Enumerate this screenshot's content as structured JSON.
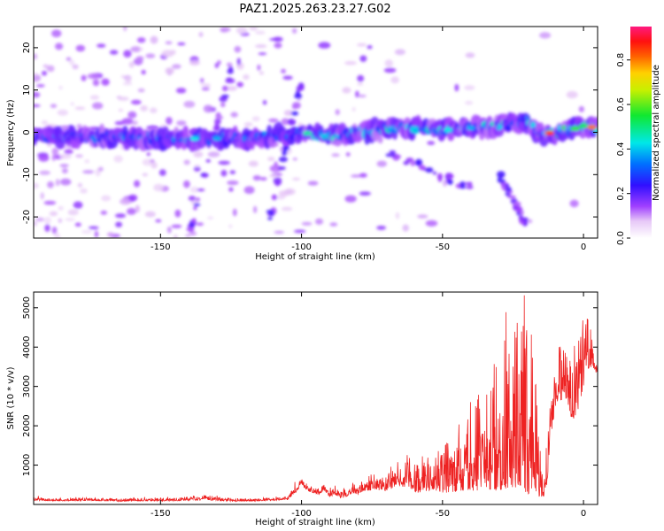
{
  "title": "PAZ1.2025.263.23.27.G02",
  "colors": {
    "trace": "#ee2222",
    "plot_bg": "#ffffff",
    "axis": "#000000"
  },
  "chart_data": [
    {
      "type": "heatmap",
      "xlabel": "Height of straight line (km)",
      "ylabel": "Frequency (Hz)",
      "xlim": [
        -195,
        5
      ],
      "ylim": [
        -25,
        25
      ],
      "x_ticks": [
        -150,
        -100,
        -50,
        0
      ],
      "y_ticks": [
        -20,
        -10,
        0,
        10,
        20
      ],
      "colorbar": {
        "label": "Normalized spectral amplitude",
        "range": [
          0,
          0.95
        ],
        "ticks": [
          0.0,
          0.2,
          0.4,
          0.6,
          0.8
        ],
        "colormap": "rainbow (white-violet-blue-cyan-green-yellow-red-magenta)"
      },
      "ridge": {
        "description": "Main signal ridge near 0 Hz",
        "x": [
          -195,
          -175,
          -150,
          -130,
          -110,
          -100,
          -90,
          -80,
          -70,
          -60,
          -50,
          -40,
          -30,
          -20,
          -15,
          -10,
          -5,
          0,
          5
        ],
        "freq_hz": [
          -1.5,
          -1.0,
          -1.5,
          -1.5,
          -1.0,
          0.0,
          -1.0,
          0.0,
          1.0,
          1.0,
          0.5,
          1.0,
          1.5,
          2.5,
          -0.5,
          0.0,
          0.5,
          1.5,
          1.0
        ]
      },
      "grid": false
    },
    {
      "type": "line",
      "xlabel": "Height of straight line (km)",
      "ylabel": "SNR (10 * v/v)",
      "xlim": [
        -195,
        5
      ],
      "ylim": [
        0,
        5400
      ],
      "x_ticks": [
        -150,
        -100,
        -50,
        0
      ],
      "y_ticks": [
        1000,
        2000,
        3000,
        4000,
        5000
      ],
      "series": [
        {
          "x": [
            -195,
            -185,
            -175,
            -165,
            -155,
            -145,
            -135,
            -125,
            -115,
            -105,
            -102,
            -100,
            -98,
            -96,
            -94,
            -92,
            -90,
            -88,
            -86,
            -84,
            -82,
            -80,
            -78,
            -76,
            -74,
            -72,
            -70,
            -68,
            -66,
            -64,
            -62,
            -60,
            -58,
            -56,
            -54,
            -52,
            -50,
            -48,
            -46,
            -44,
            -42,
            -40,
            -38,
            -36,
            -34,
            -32,
            -30,
            -28,
            -26,
            -24,
            -22,
            -21,
            -20,
            -19,
            -18,
            -17,
            -16,
            -15,
            -14,
            -13,
            -12,
            -10,
            -8,
            -6,
            -4,
            -2,
            0,
            2,
            4,
            5
          ],
          "y_low": [
            100,
            90,
            100,
            80,
            90,
            90,
            110,
            80,
            90,
            120,
            300,
            500,
            350,
            300,
            250,
            350,
            200,
            250,
            150,
            200,
            300,
            250,
            350,
            350,
            400,
            350,
            350,
            400,
            500,
            450,
            450,
            300,
            300,
            300,
            350,
            350,
            300,
            300,
            300,
            350,
            350,
            350,
            350,
            400,
            400,
            350,
            350,
            400,
            400,
            400,
            300,
            300,
            250,
            300,
            300,
            300,
            200,
            200,
            200,
            400,
            1500,
            2500,
            2600,
            2700,
            2100,
            2400,
            3000,
            3500,
            3400,
            3300
          ],
          "y_high": [
            200,
            180,
            190,
            170,
            190,
            180,
            280,
            170,
            190,
            200,
            600,
            750,
            550,
            450,
            450,
            550,
            400,
            550,
            380,
            450,
            650,
            550,
            700,
            750,
            900,
            800,
            850,
            1000,
            1300,
            1200,
            1500,
            1100,
            1000,
            1100,
            1500,
            1000,
            1500,
            1600,
            1400,
            1700,
            2000,
            2700,
            2800,
            2900,
            3200,
            4200,
            3000,
            4200,
            4000,
            4500,
            5100,
            5400,
            5300,
            4800,
            4300,
            3500,
            1800,
            1500,
            1400,
            1700,
            2600,
            3800,
            4100,
            3900,
            4000,
            4200,
            4800,
            4700,
            3800,
            3700
          ]
        }
      ],
      "grid": false
    }
  ]
}
